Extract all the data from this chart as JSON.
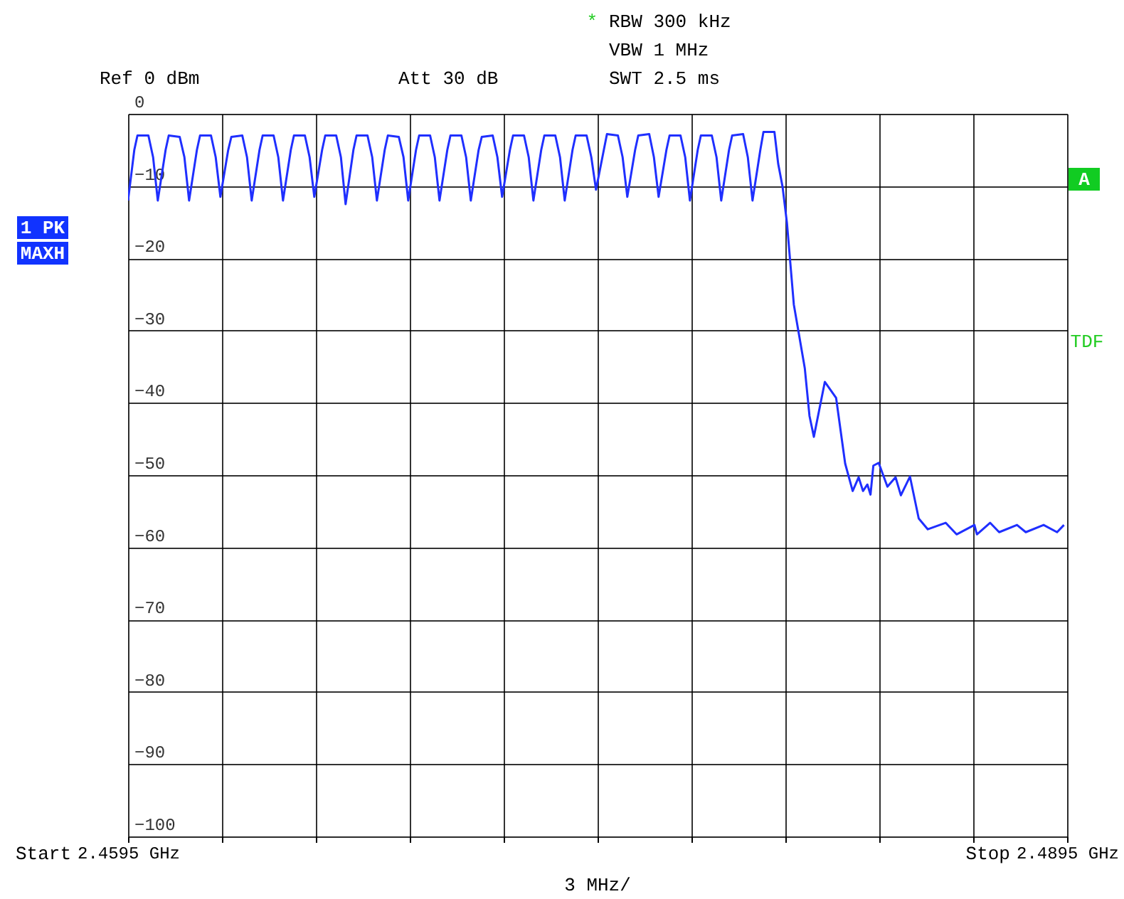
{
  "chart_data": {
    "type": "line",
    "x": [
      2.4595,
      2.4597,
      2.4598,
      2.46015,
      2.4603,
      2.46045,
      2.4607,
      2.4608,
      2.46115,
      2.4613,
      2.46145,
      2.4617,
      2.4618,
      2.46215,
      2.4623,
      2.46245,
      2.4627,
      2.4628,
      2.46315,
      2.4633,
      2.46345,
      2.4637,
      2.4638,
      2.46415,
      2.4643,
      2.46445,
      2.4647,
      2.4648,
      2.46515,
      2.4653,
      2.46545,
      2.4657,
      2.4658,
      2.46615,
      2.4663,
      2.46645,
      2.4667,
      2.4668,
      2.46715,
      2.4673,
      2.46745,
      2.4677,
      2.4678,
      2.46815,
      2.4683,
      2.46845,
      2.4687,
      2.4688,
      2.46915,
      2.4693,
      2.46945,
      2.4697,
      2.4698,
      2.47015,
      2.4703,
      2.47045,
      2.4707,
      2.4708,
      2.47115,
      2.4713,
      2.47145,
      2.4717,
      2.4718,
      2.47215,
      2.4723,
      2.47245,
      2.4727,
      2.4728,
      2.47315,
      2.4733,
      2.47345,
      2.4737,
      2.4738,
      2.47415,
      2.4743,
      2.47445,
      2.4747,
      2.4748,
      2.47515,
      2.4753,
      2.47545,
      2.4757,
      2.4758,
      2.47615,
      2.4763,
      2.47645,
      2.4767,
      2.4768,
      2.47715,
      2.4773,
      2.47745,
      2.4777,
      2.4778,
      2.47815,
      2.4783,
      2.47845,
      2.4787,
      2.4788,
      2.47915,
      2.4793,
      2.47945,
      2.4797,
      2.4798,
      2.48015,
      2.48027,
      2.48041,
      2.48055,
      2.48077,
      2.48112,
      2.48127,
      2.48141,
      2.48176,
      2.48212,
      2.48241,
      2.48265,
      2.48284,
      2.48298,
      2.48312,
      2.48322,
      2.48331,
      2.48348,
      2.48376,
      2.48402,
      2.48419,
      2.48448,
      2.48476,
      2.48505,
      2.48562,
      2.48597,
      2.48654,
      2.48662,
      2.48704,
      2.48733,
      2.4879,
      2.48818,
      2.48875,
      2.48918,
      2.4894
    ],
    "series": [
      {
        "color": "#1f2fff",
        "values": [
          -12,
          -5,
          -3,
          -3,
          -6,
          -12,
          -5,
          -3,
          -3.2,
          -6,
          -12,
          -5,
          -3,
          -3,
          -6,
          -11.5,
          -5,
          -3.2,
          -3,
          -6,
          -12,
          -5,
          -3,
          -3,
          -6,
          -12,
          -5,
          -3,
          -3,
          -6,
          -11.5,
          -5,
          -3,
          -3,
          -6,
          -12.5,
          -5,
          -3,
          -3,
          -6,
          -12,
          -5,
          -3,
          -3.2,
          -6,
          -12,
          -5,
          -3,
          -3,
          -6,
          -12,
          -5,
          -3,
          -3,
          -6,
          -12,
          -5,
          -3.2,
          -3,
          -6,
          -11.5,
          -5,
          -3,
          -3,
          -6,
          -12,
          -5,
          -3,
          -3,
          -6,
          -12,
          -5,
          -3,
          -3,
          -6,
          -10.5,
          -5,
          -2.8,
          -3,
          -6,
          -11.5,
          -5,
          -3,
          -2.8,
          -6,
          -11.5,
          -5,
          -3,
          -3,
          -6,
          -12,
          -5,
          -3,
          -3,
          -6,
          -12,
          -5,
          -3,
          -2.8,
          -6,
          -12,
          -5,
          -2.5,
          -2.5,
          -6.9,
          -10.1,
          -15.1,
          -26.4,
          -35.2,
          -41.8,
          -44.7,
          -37.1,
          -39.3,
          -48.4,
          -52.2,
          -50.3,
          -52.2,
          -51.3,
          -52.7,
          -48.7,
          -48.3,
          -51.6,
          -50.3,
          -52.8,
          -50.2,
          -56.0,
          -57.5,
          -56.6,
          -58.2,
          -56.9,
          -58.2,
          -56.6,
          -57.9,
          -56.9,
          -57.9,
          -56.9,
          -57.9,
          -56.9
        ]
      }
    ],
    "xlim": [
      2.4595,
      2.4895
    ],
    "xticks": [
      {
        "value": 2.4595,
        "label": "2.4595 GHz"
      },
      {
        "value": 2.4625,
        "label": null
      },
      {
        "value": 2.4655,
        "label": null
      },
      {
        "value": 2.4685,
        "label": null
      },
      {
        "value": 2.4715,
        "label": null
      },
      {
        "value": 2.4745,
        "label": null
      },
      {
        "value": 2.4775,
        "label": null
      },
      {
        "value": 2.4805,
        "label": null
      },
      {
        "value": 2.4835,
        "label": null
      },
      {
        "value": 2.4865,
        "label": null
      },
      {
        "value": 2.4895,
        "label": "2.4895 GHz"
      }
    ],
    "ylim": [
      -100,
      0
    ],
    "yticks": [
      -100,
      -90,
      -80,
      -70,
      -60,
      -50,
      -40,
      -30,
      -20,
      -10,
      0
    ],
    "grid": true,
    "line_style": "solid",
    "annotations": [
      "*",
      "RBW 300 kHz",
      "VBW 1 MHz",
      "SWT 2.5 ms",
      "Ref  0 dBm",
      "Att  30 dB",
      "1 PK",
      "MAXH",
      "A",
      "TDF",
      "3 MHz/",
      "Start",
      "Stop"
    ]
  }
}
